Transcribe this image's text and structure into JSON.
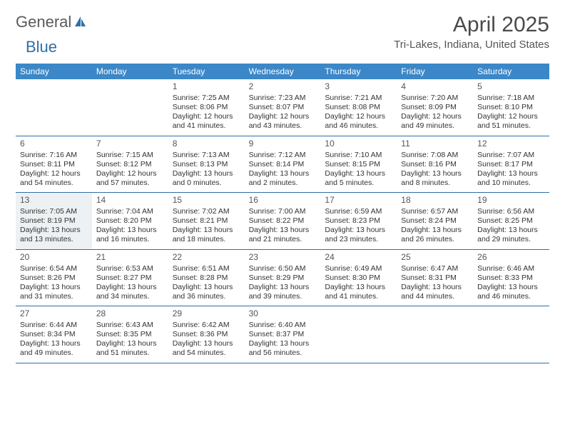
{
  "brand": {
    "word1": "General",
    "word2": "Blue"
  },
  "title": "April 2025",
  "location": "Tri-Lakes, Indiana, United States",
  "colors": {
    "header_bg": "#3b87c8",
    "header_text": "#ffffff",
    "rule": "#2f6fa7",
    "shaded_bg": "#eef1f3",
    "text": "#333333",
    "brand_gray": "#5a5a5a",
    "brand_blue": "#2f6fa7"
  },
  "day_names": [
    "Sunday",
    "Monday",
    "Tuesday",
    "Wednesday",
    "Thursday",
    "Friday",
    "Saturday"
  ],
  "weeks": [
    [
      null,
      null,
      {
        "n": "1",
        "sr": "Sunrise: 7:25 AM",
        "ss": "Sunset: 8:06 PM",
        "dl1": "Daylight: 12 hours",
        "dl2": "and 41 minutes."
      },
      {
        "n": "2",
        "sr": "Sunrise: 7:23 AM",
        "ss": "Sunset: 8:07 PM",
        "dl1": "Daylight: 12 hours",
        "dl2": "and 43 minutes."
      },
      {
        "n": "3",
        "sr": "Sunrise: 7:21 AM",
        "ss": "Sunset: 8:08 PM",
        "dl1": "Daylight: 12 hours",
        "dl2": "and 46 minutes."
      },
      {
        "n": "4",
        "sr": "Sunrise: 7:20 AM",
        "ss": "Sunset: 8:09 PM",
        "dl1": "Daylight: 12 hours",
        "dl2": "and 49 minutes."
      },
      {
        "n": "5",
        "sr": "Sunrise: 7:18 AM",
        "ss": "Sunset: 8:10 PM",
        "dl1": "Daylight: 12 hours",
        "dl2": "and 51 minutes."
      }
    ],
    [
      {
        "n": "6",
        "sr": "Sunrise: 7:16 AM",
        "ss": "Sunset: 8:11 PM",
        "dl1": "Daylight: 12 hours",
        "dl2": "and 54 minutes."
      },
      {
        "n": "7",
        "sr": "Sunrise: 7:15 AM",
        "ss": "Sunset: 8:12 PM",
        "dl1": "Daylight: 12 hours",
        "dl2": "and 57 minutes."
      },
      {
        "n": "8",
        "sr": "Sunrise: 7:13 AM",
        "ss": "Sunset: 8:13 PM",
        "dl1": "Daylight: 13 hours",
        "dl2": "and 0 minutes."
      },
      {
        "n": "9",
        "sr": "Sunrise: 7:12 AM",
        "ss": "Sunset: 8:14 PM",
        "dl1": "Daylight: 13 hours",
        "dl2": "and 2 minutes."
      },
      {
        "n": "10",
        "sr": "Sunrise: 7:10 AM",
        "ss": "Sunset: 8:15 PM",
        "dl1": "Daylight: 13 hours",
        "dl2": "and 5 minutes."
      },
      {
        "n": "11",
        "sr": "Sunrise: 7:08 AM",
        "ss": "Sunset: 8:16 PM",
        "dl1": "Daylight: 13 hours",
        "dl2": "and 8 minutes."
      },
      {
        "n": "12",
        "sr": "Sunrise: 7:07 AM",
        "ss": "Sunset: 8:17 PM",
        "dl1": "Daylight: 13 hours",
        "dl2": "and 10 minutes."
      }
    ],
    [
      {
        "n": "13",
        "sr": "Sunrise: 7:05 AM",
        "ss": "Sunset: 8:19 PM",
        "dl1": "Daylight: 13 hours",
        "dl2": "and 13 minutes.",
        "shaded": true
      },
      {
        "n": "14",
        "sr": "Sunrise: 7:04 AM",
        "ss": "Sunset: 8:20 PM",
        "dl1": "Daylight: 13 hours",
        "dl2": "and 16 minutes."
      },
      {
        "n": "15",
        "sr": "Sunrise: 7:02 AM",
        "ss": "Sunset: 8:21 PM",
        "dl1": "Daylight: 13 hours",
        "dl2": "and 18 minutes."
      },
      {
        "n": "16",
        "sr": "Sunrise: 7:00 AM",
        "ss": "Sunset: 8:22 PM",
        "dl1": "Daylight: 13 hours",
        "dl2": "and 21 minutes."
      },
      {
        "n": "17",
        "sr": "Sunrise: 6:59 AM",
        "ss": "Sunset: 8:23 PM",
        "dl1": "Daylight: 13 hours",
        "dl2": "and 23 minutes."
      },
      {
        "n": "18",
        "sr": "Sunrise: 6:57 AM",
        "ss": "Sunset: 8:24 PM",
        "dl1": "Daylight: 13 hours",
        "dl2": "and 26 minutes."
      },
      {
        "n": "19",
        "sr": "Sunrise: 6:56 AM",
        "ss": "Sunset: 8:25 PM",
        "dl1": "Daylight: 13 hours",
        "dl2": "and 29 minutes."
      }
    ],
    [
      {
        "n": "20",
        "sr": "Sunrise: 6:54 AM",
        "ss": "Sunset: 8:26 PM",
        "dl1": "Daylight: 13 hours",
        "dl2": "and 31 minutes."
      },
      {
        "n": "21",
        "sr": "Sunrise: 6:53 AM",
        "ss": "Sunset: 8:27 PM",
        "dl1": "Daylight: 13 hours",
        "dl2": "and 34 minutes."
      },
      {
        "n": "22",
        "sr": "Sunrise: 6:51 AM",
        "ss": "Sunset: 8:28 PM",
        "dl1": "Daylight: 13 hours",
        "dl2": "and 36 minutes."
      },
      {
        "n": "23",
        "sr": "Sunrise: 6:50 AM",
        "ss": "Sunset: 8:29 PM",
        "dl1": "Daylight: 13 hours",
        "dl2": "and 39 minutes."
      },
      {
        "n": "24",
        "sr": "Sunrise: 6:49 AM",
        "ss": "Sunset: 8:30 PM",
        "dl1": "Daylight: 13 hours",
        "dl2": "and 41 minutes."
      },
      {
        "n": "25",
        "sr": "Sunrise: 6:47 AM",
        "ss": "Sunset: 8:31 PM",
        "dl1": "Daylight: 13 hours",
        "dl2": "and 44 minutes."
      },
      {
        "n": "26",
        "sr": "Sunrise: 6:46 AM",
        "ss": "Sunset: 8:33 PM",
        "dl1": "Daylight: 13 hours",
        "dl2": "and 46 minutes."
      }
    ],
    [
      {
        "n": "27",
        "sr": "Sunrise: 6:44 AM",
        "ss": "Sunset: 8:34 PM",
        "dl1": "Daylight: 13 hours",
        "dl2": "and 49 minutes."
      },
      {
        "n": "28",
        "sr": "Sunrise: 6:43 AM",
        "ss": "Sunset: 8:35 PM",
        "dl1": "Daylight: 13 hours",
        "dl2": "and 51 minutes."
      },
      {
        "n": "29",
        "sr": "Sunrise: 6:42 AM",
        "ss": "Sunset: 8:36 PM",
        "dl1": "Daylight: 13 hours",
        "dl2": "and 54 minutes."
      },
      {
        "n": "30",
        "sr": "Sunrise: 6:40 AM",
        "ss": "Sunset: 8:37 PM",
        "dl1": "Daylight: 13 hours",
        "dl2": "and 56 minutes."
      },
      null,
      null,
      null
    ]
  ]
}
